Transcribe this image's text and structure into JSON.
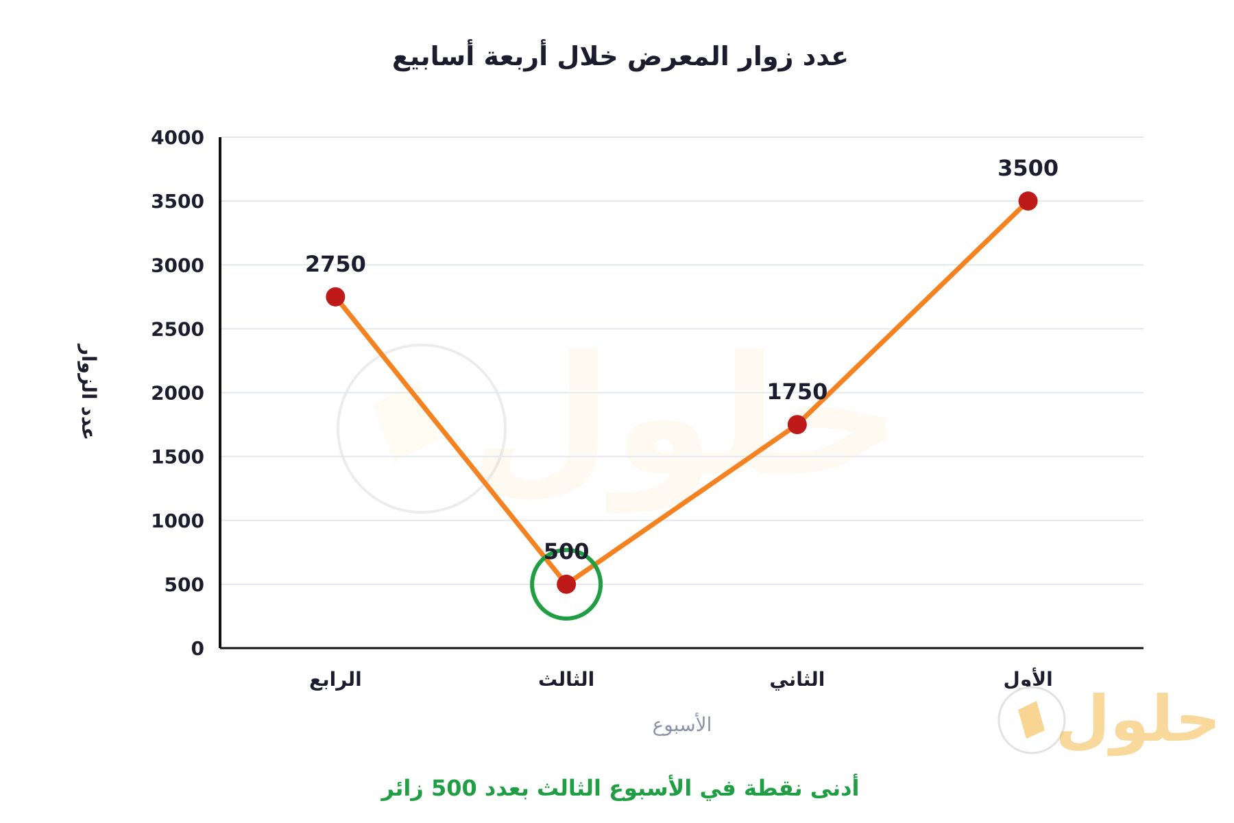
{
  "colors": {
    "line": "#f58220",
    "point": "#bf1a1a",
    "highlight": "#1f9e44",
    "grid": "#e3e8ee",
    "axis": "#111111",
    "note": "#1f9e44"
  },
  "watermark": {
    "brand": "حلول"
  },
  "logo": {
    "brand": "حلول"
  },
  "chart_data": {
    "type": "line",
    "title": "عدد زوار المعرض خلال أربعة أسابيع",
    "xlabel": "الأسبوع",
    "ylabel": "عدد الزوار",
    "categories": [
      "الرابع",
      "الثالث",
      "الثاني",
      "الأول"
    ],
    "values": [
      2750,
      500,
      1750,
      3500
    ],
    "data_labels": [
      "2750",
      "500",
      "1750",
      "3500"
    ],
    "ylim": [
      0,
      4000
    ],
    "yticks": [
      0,
      500,
      1000,
      1500,
      2000,
      2500,
      3000,
      3500,
      4000
    ],
    "grid": true,
    "highlight_category": "الثالث",
    "annotation": "أدنى نقطة في الأسبوع الثالث بعدد 500 زائر"
  }
}
